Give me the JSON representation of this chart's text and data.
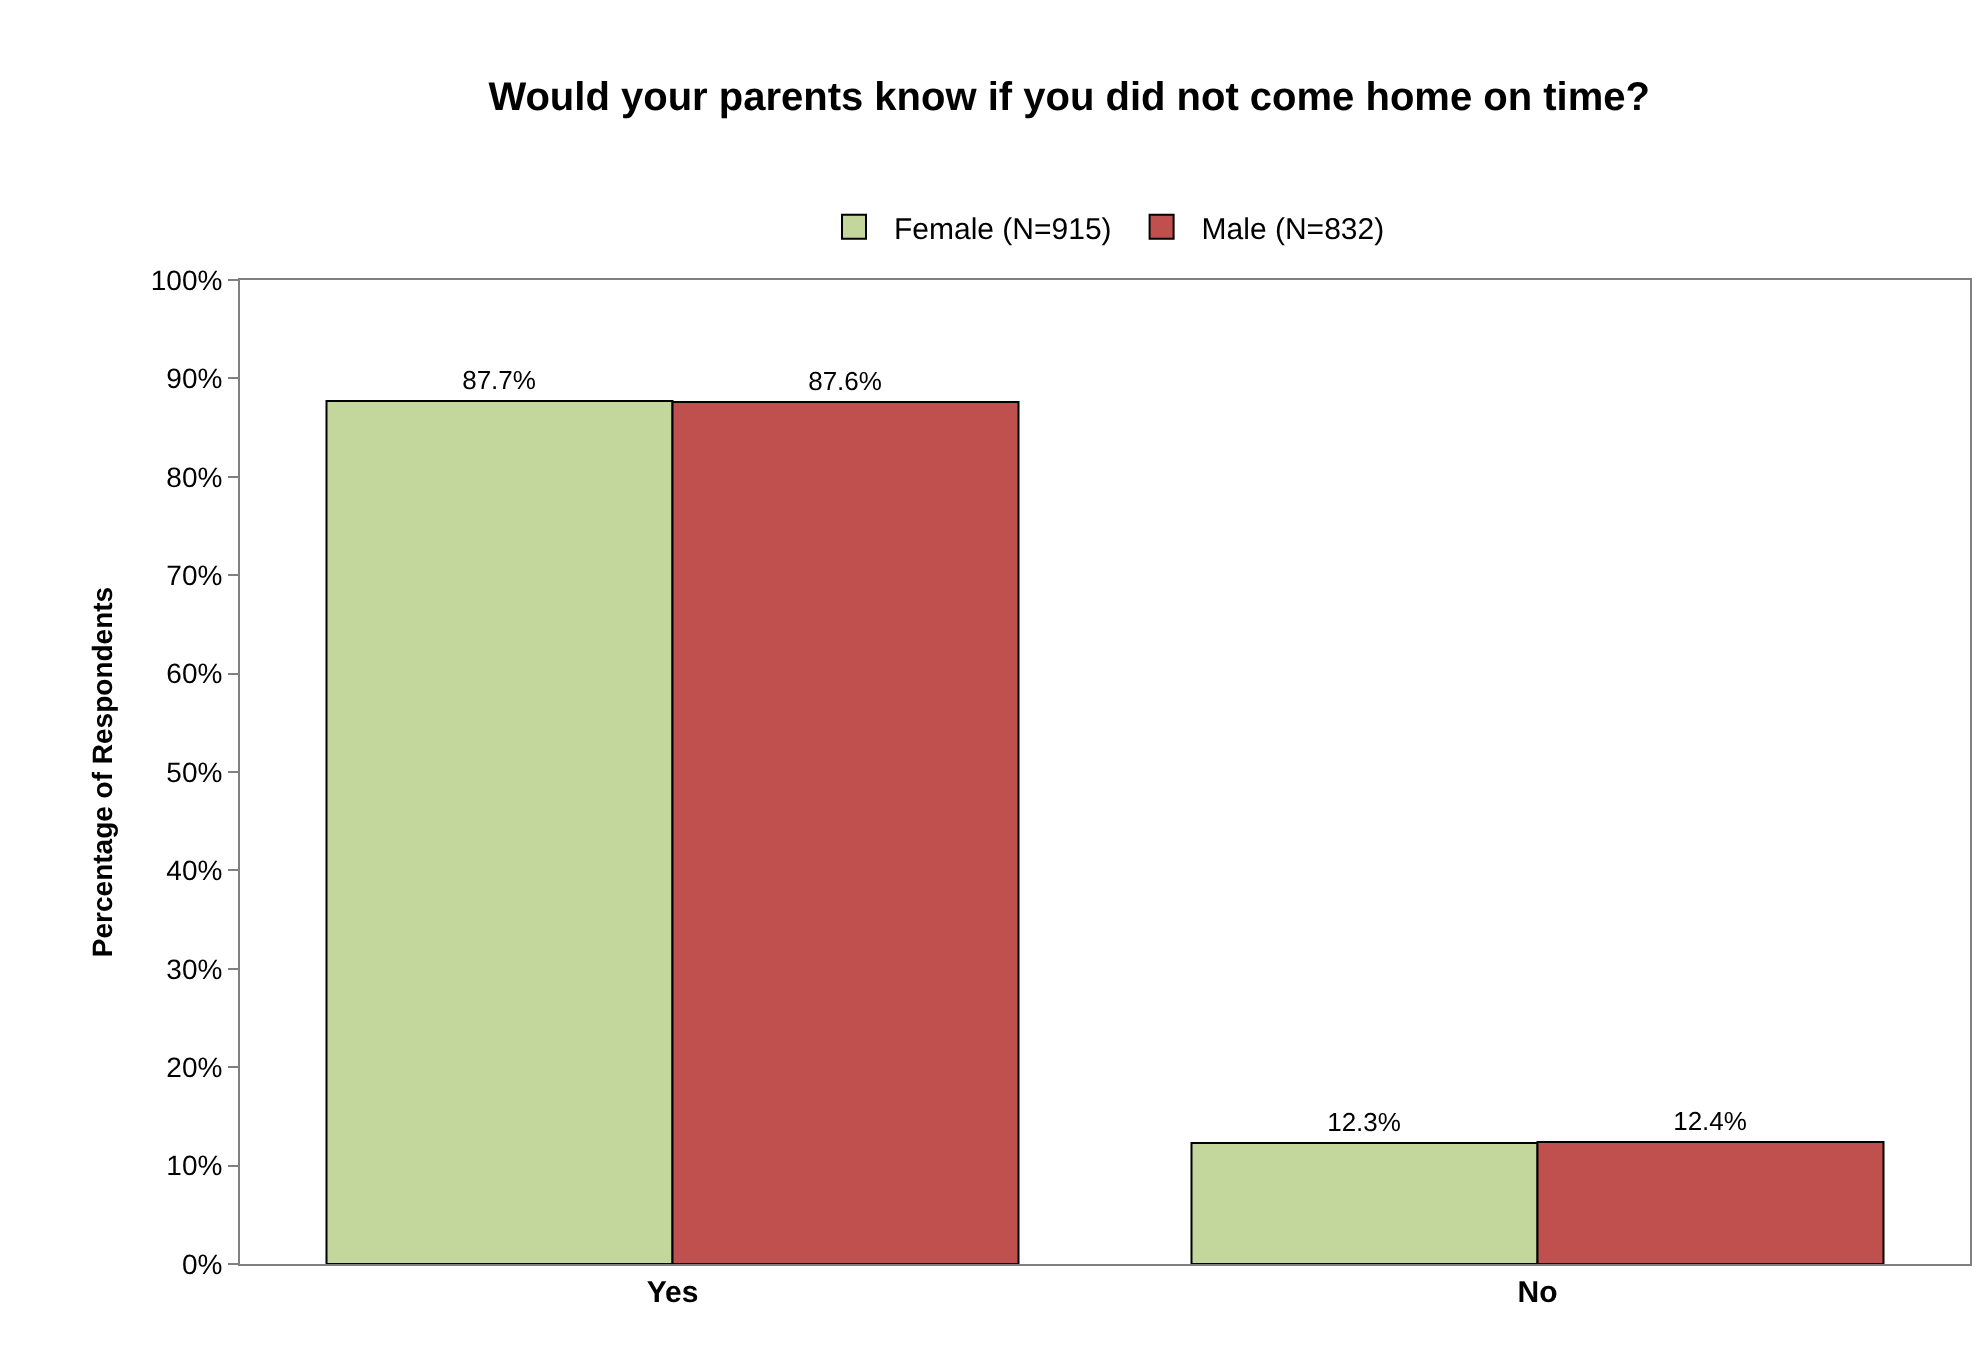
{
  "chart_data": {
    "type": "bar",
    "title": "Would your parents know if you did not come home on time?",
    "ylabel": "Percentage of Respondents",
    "categories": [
      "Yes",
      "No"
    ],
    "series": [
      {
        "name": "Female (N=915)",
        "color": "#c3d69b",
        "values": [
          87.7,
          12.3
        ],
        "value_labels": [
          "87.7%",
          "12.3%"
        ]
      },
      {
        "name": "Male (N=832)",
        "color": "#c0504d",
        "values": [
          87.6,
          12.4
        ],
        "value_labels": [
          "87.6%",
          "12.4%"
        ]
      }
    ],
    "ylim": [
      0,
      100
    ],
    "yticks": [
      {
        "value": 0,
        "label": "0%"
      },
      {
        "value": 10,
        "label": "10%"
      },
      {
        "value": 20,
        "label": "20%"
      },
      {
        "value": 30,
        "label": "30%"
      },
      {
        "value": 40,
        "label": "40%"
      },
      {
        "value": 50,
        "label": "50%"
      },
      {
        "value": 60,
        "label": "60%"
      },
      {
        "value": 70,
        "label": "70%"
      },
      {
        "value": 80,
        "label": "80%"
      },
      {
        "value": 90,
        "label": "90%"
      },
      {
        "value": 100,
        "label": "100%"
      }
    ],
    "grid": false,
    "legend": "top"
  }
}
